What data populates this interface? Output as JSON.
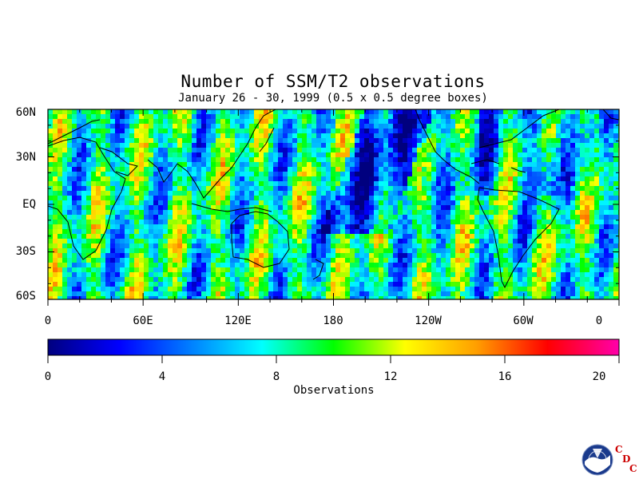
{
  "title": "Number of SSM/T2 observations",
  "subtitle": "January 26 - 30, 1999 (0.5 x 0.5 degree boxes)",
  "map": {
    "lat_labels": [
      "60N",
      "30N",
      "EQ",
      "30S",
      "60S"
    ],
    "lat_values": [
      60,
      30,
      0,
      -30,
      -60
    ],
    "lon_labels": [
      "0",
      "60E",
      "120E",
      "180",
      "120W",
      "60W",
      "0"
    ],
    "lon_values": [
      0,
      60,
      120,
      180,
      240,
      300,
      360
    ],
    "lat_range": [
      -60,
      60
    ],
    "lon_range": [
      0,
      360
    ]
  },
  "colorbar": {
    "title": "Observations",
    "tick_labels": [
      "0",
      "4",
      "8",
      "12",
      "16",
      "20"
    ],
    "tick_values": [
      0,
      4,
      8,
      12,
      16,
      20
    ],
    "range": [
      0,
      20
    ],
    "colors": [
      "#00007f",
      "#0000ff",
      "#007fff",
      "#00ffff",
      "#00ff00",
      "#ffff00",
      "#ff9f00",
      "#ff0000",
      "#ff00aa"
    ]
  },
  "logo": {
    "name": "NOAA",
    "letters": [
      "C",
      "D",
      "C"
    ],
    "accent": "#cc0000"
  }
}
